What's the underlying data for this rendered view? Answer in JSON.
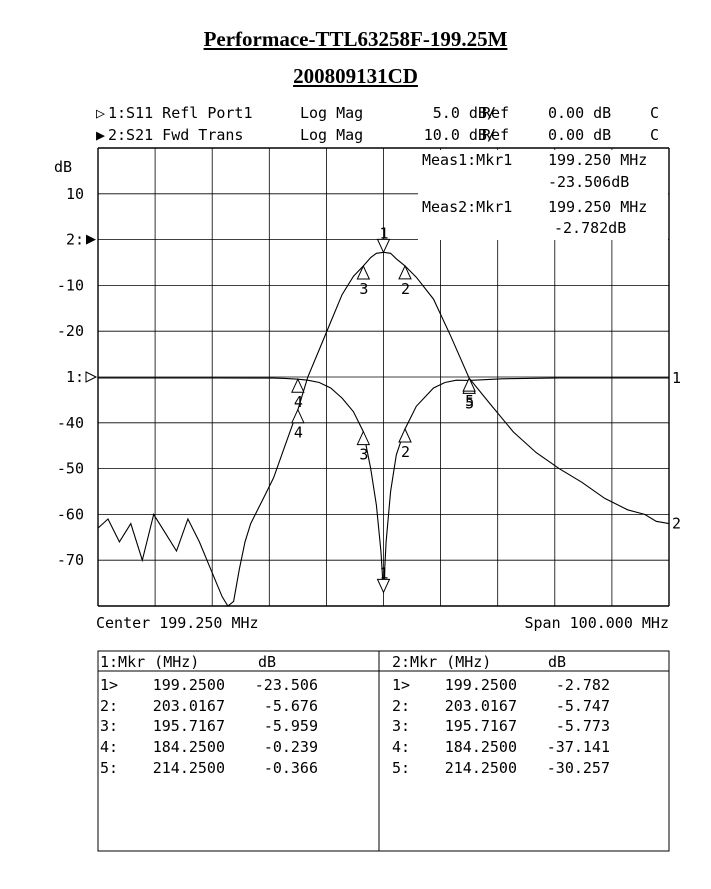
{
  "title": "Performace-TTL63258F-199.25M",
  "subtitle": "200809131CD",
  "channels": [
    {
      "marker": "▷",
      "label": "1:S11 Refl Port1",
      "format": "Log Mag",
      "scale": "5.0 dB/",
      "ref_label": "Ref",
      "ref": "0.00 dB",
      "flag": "C"
    },
    {
      "marker": "▶",
      "label": "2:S21 Fwd Trans",
      "format": "Log Mag",
      "scale": "10.0 dB/",
      "ref_label": "Ref",
      "ref": "0.00 dB",
      "flag": "C"
    }
  ],
  "meas": [
    {
      "label": "Meas1:Mkr1",
      "freq": "199.250 MHz",
      "value": "-23.506dB"
    },
    {
      "label": "Meas2:Mkr1",
      "freq": "199.250 MHz",
      "value": "-2.782dB"
    }
  ],
  "footer": {
    "center": "Center 199.250 MHz",
    "span": "Span 100.000 MHz"
  },
  "chart_data": {
    "type": "line",
    "ylabel": "dB",
    "x_range_mhz": [
      149.25,
      249.25
    ],
    "y_range_ch2": [
      -80,
      20
    ],
    "y_ticks": [
      "10",
      "2:",
      "-10",
      "-20",
      "1:",
      "-40",
      "-50",
      "-60",
      "-70"
    ],
    "y_tick_values": [
      10,
      0,
      -10,
      -20,
      -30,
      -40,
      -50,
      -60,
      -70
    ],
    "grid": true,
    "series": [
      {
        "name": "1",
        "x": [
          149.25,
          160,
          170,
          180,
          182,
          184.25,
          186,
          188,
          190,
          192,
          194,
          195.7167,
          197,
          198,
          198.8,
          199.25,
          199.7,
          200.5,
          201.5,
          203.0167,
          205,
          208,
          210,
          212,
          214.25,
          220,
          230,
          240,
          249.25
        ],
        "y": [
          -0.1,
          -0.1,
          -0.1,
          -0.12,
          -0.15,
          -0.239,
          -0.35,
          -0.6,
          -1.2,
          -2.3,
          -3.8,
          -5.959,
          -10,
          -14,
          -19,
          -23.506,
          -18,
          -12.5,
          -8.5,
          -5.676,
          -3.2,
          -1.2,
          -0.6,
          -0.35,
          -0.366,
          -0.2,
          -0.1,
          -0.1,
          -0.1
        ]
      },
      {
        "name": "2",
        "x": [
          149.25,
          151,
          153,
          155,
          157,
          159,
          161,
          163,
          165,
          167,
          169,
          171,
          172,
          173,
          174,
          175,
          176,
          178,
          180,
          182,
          184.25,
          186,
          188,
          190,
          192,
          194,
          195.7167,
          197,
          198,
          199.25,
          200.5,
          201.5,
          203.0167,
          205,
          208,
          211,
          214.25,
          218,
          222,
          226,
          230,
          234,
          238,
          242,
          245,
          247,
          249.25
        ],
        "y": [
          -63,
          -61,
          -66,
          -62,
          -70,
          -60,
          -64,
          -68,
          -61,
          -66,
          -72,
          -78,
          -80,
          -79,
          -72,
          -66,
          -62,
          -57,
          -52,
          -45,
          -37.141,
          -30,
          -24,
          -18,
          -12,
          -8,
          -5.773,
          -3.9,
          -3,
          -2.782,
          -3,
          -4.2,
          -5.747,
          -8.2,
          -13,
          -21,
          -30.257,
          -36,
          -42,
          -46.5,
          -50,
          -53,
          -56.5,
          -59,
          -60,
          -61.5,
          -62
        ]
      }
    ],
    "markers_ch1": [
      {
        "id": "1>",
        "freq": "199.2500",
        "value": "-23.506"
      },
      {
        "id": "2:",
        "freq": "203.0167",
        "value": "-5.676"
      },
      {
        "id": "3:",
        "freq": "195.7167",
        "value": "-5.959"
      },
      {
        "id": "4:",
        "freq": "184.2500",
        "value": "-0.239"
      },
      {
        "id": "5:",
        "freq": "214.2500",
        "value": "-0.366"
      }
    ],
    "markers_ch2": [
      {
        "id": "1>",
        "freq": "199.2500",
        "value": "-2.782"
      },
      {
        "id": "2:",
        "freq": "203.0167",
        "value": "-5.747"
      },
      {
        "id": "3:",
        "freq": "195.7167",
        "value": "-5.773"
      },
      {
        "id": "4:",
        "freq": "184.2500",
        "value": "-37.141"
      },
      {
        "id": "5:",
        "freq": "214.2500",
        "value": "-30.257"
      }
    ]
  },
  "table": {
    "ch1_header": "1:Mkr (MHz)",
    "ch1_unit": "dB",
    "ch2_header": "2:Mkr (MHz)",
    "ch2_unit": "dB"
  },
  "trace_end_labels": [
    "1",
    "2"
  ]
}
